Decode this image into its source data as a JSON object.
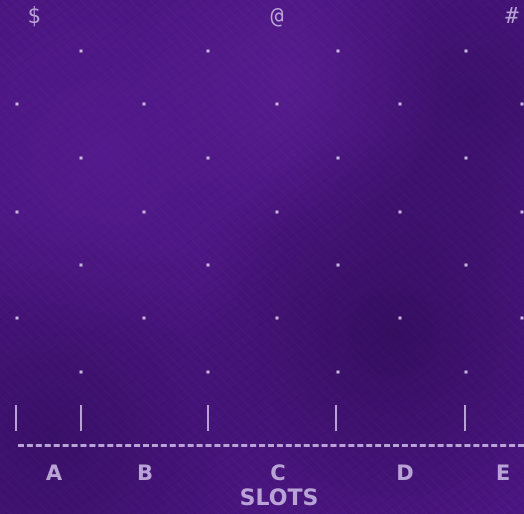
{
  "top_symbols": [
    "$",
    "@",
    "#"
  ],
  "slots": [
    "A",
    "B",
    "C",
    "D",
    "E"
  ],
  "footer_title": "SLOTS",
  "colors": {
    "background": "#4a1580",
    "foreground": "#b9a3d6"
  }
}
